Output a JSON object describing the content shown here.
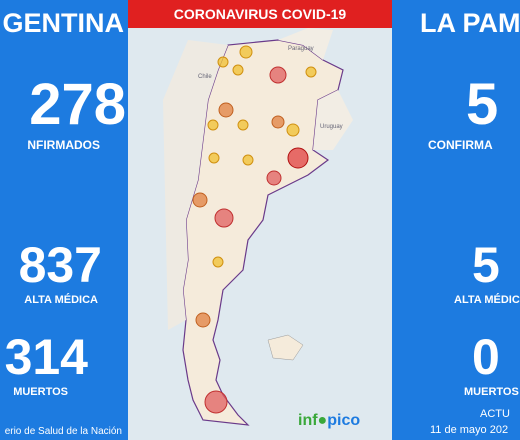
{
  "header": {
    "title": "CORONAVIRUS COVID-19"
  },
  "national": {
    "region": "GENTINA",
    "confirmed": "278",
    "confirmed_label": "NFIRMADOS",
    "recovered": "837",
    "recovered_label": "ALTA MÉDICA",
    "deaths": "314",
    "deaths_label": "MUERTOS",
    "source": "erio de Salud de la Nación"
  },
  "province": {
    "region": "LA PAM",
    "confirmed": "5",
    "confirmed_label": "CONFIRMA",
    "recovered": "5",
    "recovered_label": "ALTA MÉDIC",
    "deaths": "0",
    "deaths_label": "MUERTOS",
    "updated_label": "ACTU",
    "date": "11 de mayo 202"
  },
  "map": {
    "countries": [
      "Paraguay",
      "Chile",
      "Uruguay"
    ]
  },
  "logo": {
    "left": "inf",
    "right": "pico"
  }
}
